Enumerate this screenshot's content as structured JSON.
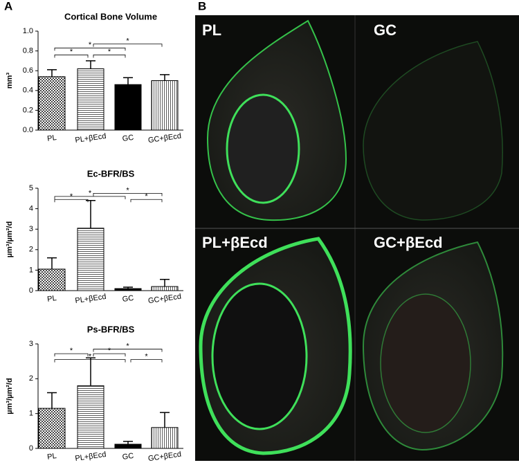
{
  "panel_a_label": "A",
  "panel_b": {
    "label": "B",
    "images": [
      "PL",
      "GC",
      "PL+βEcd",
      "GC+βEcd"
    ]
  },
  "chart_data": [
    {
      "type": "bar",
      "title": "Cortical Bone Volume",
      "y_label": "mm³",
      "color": "#000000",
      "categories": [
        "PL",
        "PL+βEcd",
        "GC",
        "GC+βEcd"
      ],
      "values": [
        0.54,
        0.62,
        0.46,
        0.5
      ],
      "errors": [
        0.07,
        0.08,
        0.07,
        0.06
      ],
      "ylim": [
        0,
        1
      ],
      "yticks": [
        {
          "value": 0,
          "label": "0.0"
        },
        0.2,
        0.4,
        0.6,
        0.8,
        {
          "value": 1,
          "label": "1.0"
        }
      ],
      "annotations": [
        "*",
        "*",
        "*",
        "*"
      ]
    },
    {
      "type": "bar",
      "title": "Ec-BFR/BS",
      "y_label": "µm³/µm²/d",
      "color": "#000000",
      "categories": [
        "PL",
        "PL+βEcd",
        "GC",
        "GC+βEcd"
      ],
      "values": [
        1.05,
        3.05,
        0.1,
        0.2
      ],
      "errors": [
        0.55,
        1.35,
        0.07,
        0.35
      ],
      "ylim": [
        0,
        5
      ],
      "yticks": [
        0,
        1,
        2,
        3,
        4,
        5
      ],
      "annotations": [
        "*",
        "*",
        "*",
        "*"
      ]
    },
    {
      "type": "bar",
      "title": "Ps-BFR/BS",
      "y_label": "µm³/µm²/d",
      "color": "#000000",
      "categories": [
        "PL",
        "PL+βEcd",
        "GC",
        "GC+βEcd"
      ],
      "values": [
        1.15,
        1.8,
        0.12,
        0.6
      ],
      "errors": [
        0.45,
        0.8,
        0.08,
        0.43
      ],
      "ylim": [
        0,
        3
      ],
      "yticks": [
        0,
        1,
        2,
        3
      ],
      "annotations": [
        "*",
        "*",
        "*",
        "*",
        "*"
      ]
    }
  ]
}
